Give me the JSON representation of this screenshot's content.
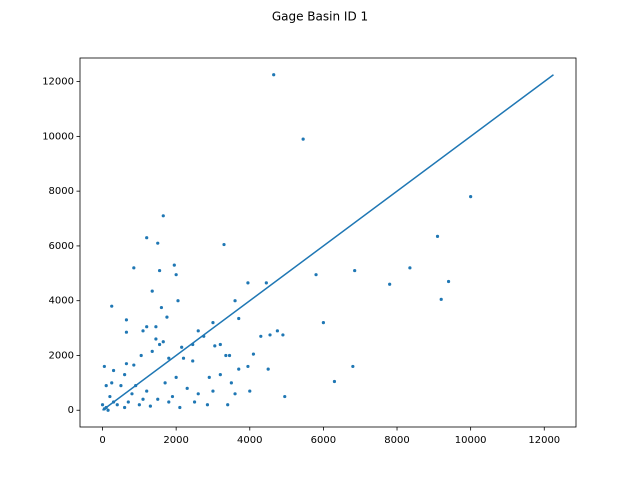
{
  "chart_data": {
    "type": "scatter",
    "title": "Gage Basin ID 1",
    "xlim": [
      -612,
      12862
    ],
    "ylim": [
      -612,
      12862
    ],
    "xticks": [
      0,
      2000,
      4000,
      6000,
      8000,
      10000,
      12000
    ],
    "yticks": [
      0,
      2000,
      4000,
      6000,
      8000,
      10000,
      12000
    ],
    "series": [
      {
        "type": "scatter",
        "color": "#1f77b4",
        "x": [
          4650,
          5450,
          10000,
          1650,
          1200,
          1500,
          3300,
          9100,
          850,
          1550,
          1950,
          2000,
          8350,
          6850,
          5800,
          9400,
          4450,
          3950,
          7800,
          1350,
          9200,
          2050,
          3600,
          250,
          1600,
          1750,
          650,
          3700,
          6000,
          3000,
          1200,
          1450,
          1100,
          650,
          2600,
          4750,
          4900,
          4300,
          4550,
          1450,
          1650,
          1550,
          2450,
          2750,
          3050,
          3200,
          2150,
          1350,
          1050,
          1800,
          2200,
          3350,
          3450,
          2450,
          4100,
          650,
          850,
          3700,
          3950,
          6800,
          6300,
          4500,
          4950,
          50,
          300,
          600,
          2900,
          3500,
          3600,
          4000,
          3400,
          2850,
          2600,
          2300,
          2000,
          1700,
          1900,
          500,
          800,
          1200,
          1500,
          300,
          100,
          50,
          200,
          400,
          700,
          1000,
          1300,
          100,
          250,
          600,
          900,
          1100,
          1800,
          2100,
          2500,
          3000,
          3200,
          150,
          0
        ],
        "y": [
          12250,
          9900,
          7800,
          7100,
          6300,
          6100,
          6050,
          6350,
          5200,
          5100,
          5300,
          4950,
          5200,
          5100,
          4950,
          4700,
          4650,
          4650,
          4600,
          4350,
          4050,
          4000,
          4000,
          3800,
          3750,
          3400,
          3300,
          3350,
          3200,
          3200,
          3050,
          3050,
          2900,
          2850,
          2900,
          2900,
          2750,
          2700,
          2750,
          2600,
          2500,
          2400,
          2400,
          2700,
          2350,
          2400,
          2300,
          2150,
          2000,
          1900,
          1900,
          2000,
          2000,
          1800,
          2050,
          1700,
          1650,
          1500,
          1600,
          1600,
          1050,
          1500,
          500,
          1600,
          1450,
          1300,
          1200,
          1000,
          600,
          700,
          200,
          200,
          600,
          800,
          1200,
          1000,
          500,
          900,
          600,
          700,
          400,
          300,
          100,
          50,
          500,
          200,
          300,
          200,
          150,
          900,
          1000,
          100,
          900,
          400,
          300,
          100,
          300,
          700,
          1300,
          0,
          200
        ]
      },
      {
        "type": "line",
        "color": "#1f77b4",
        "x": [
          0,
          12250
        ],
        "y": [
          0,
          12250
        ]
      }
    ]
  }
}
